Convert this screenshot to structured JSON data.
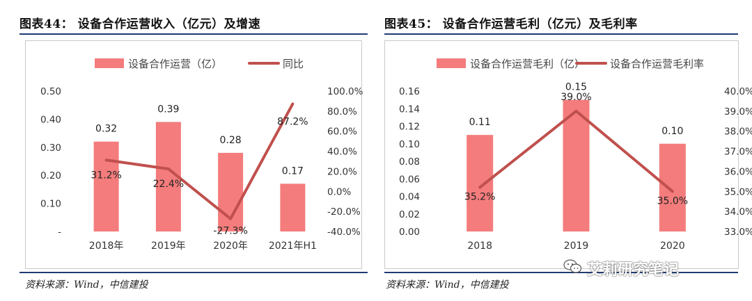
{
  "figures": [
    {
      "title": "图表44：  设备合作运营收入（亿元）及增速",
      "source": "资料来源：Wind，中信建投"
    },
    {
      "title": "图表45：  设备合作运营毛利（亿元）及毛利率",
      "source": "资料来源：Wind，中信建投"
    }
  ],
  "watermark": "艾莉研究笔记",
  "colors": {
    "bar": "#f47c7c",
    "line": "#c0504d",
    "rule": "#1f3b73"
  },
  "chart_data": [
    {
      "type": "bar",
      "categories": [
        "2018年",
        "2019年",
        "2020年",
        "2021年H1"
      ],
      "series": [
        {
          "name": "设备合作运营（亿）",
          "kind": "bar",
          "axis": "left",
          "values": [
            0.32,
            0.39,
            0.28,
            0.17
          ],
          "labels": [
            "0.32",
            "0.39",
            "0.28",
            "0.17"
          ]
        },
        {
          "name": "同比",
          "kind": "line",
          "axis": "right",
          "values": [
            31.2,
            22.4,
            -27.3,
            87.2
          ],
          "labels": [
            "31.2%",
            "22.4%",
            "-27.3%",
            "87.2%"
          ]
        }
      ],
      "y_left": {
        "min": 0,
        "max": 0.5,
        "ticks": [
          0.5,
          0.4,
          0.3,
          0.2,
          0.1,
          0.0
        ],
        "tick_labels": [
          "0.50",
          "0.40",
          "0.30",
          "0.20",
          "0.10",
          "-"
        ]
      },
      "y_right": {
        "min": -40,
        "max": 100,
        "ticks": [
          100,
          80,
          60,
          40,
          20,
          0,
          -20,
          -40
        ],
        "tick_labels": [
          "100.0%",
          "80.0%",
          "60.0%",
          "40.0%",
          "20.0%",
          "0.0%",
          "-20.0%",
          "-40.0%"
        ]
      },
      "legend_position": "top",
      "grid": false
    },
    {
      "type": "bar",
      "categories": [
        "2018",
        "2019",
        "2020"
      ],
      "series": [
        {
          "name": "设备合作运营毛利（亿）",
          "kind": "bar",
          "axis": "left",
          "values": [
            0.11,
            0.15,
            0.1
          ],
          "labels": [
            "0.11",
            "0.15",
            "0.10"
          ]
        },
        {
          "name": "设备合作运营毛利率",
          "kind": "line",
          "axis": "right",
          "values": [
            35.2,
            39.0,
            35.0
          ],
          "labels": [
            "35.2%",
            "39.0%",
            "35.0%"
          ]
        }
      ],
      "y_left": {
        "min": 0,
        "max": 0.16,
        "ticks": [
          0.16,
          0.14,
          0.12,
          0.1,
          0.08,
          0.06,
          0.04,
          0.02,
          0.0
        ],
        "tick_labels": [
          "0.16",
          "0.14",
          "0.12",
          "0.10",
          "0.08",
          "0.06",
          "0.04",
          "0.02",
          "0.00"
        ]
      },
      "y_right": {
        "min": 33,
        "max": 40,
        "ticks": [
          40,
          39,
          38,
          37,
          36,
          35,
          34,
          33
        ],
        "tick_labels": [
          "40.0%",
          "39.0%",
          "38.0%",
          "37.0%",
          "36.0%",
          "35.0%",
          "34.0%",
          "33.0%"
        ]
      },
      "legend_position": "top",
      "grid": false
    }
  ]
}
